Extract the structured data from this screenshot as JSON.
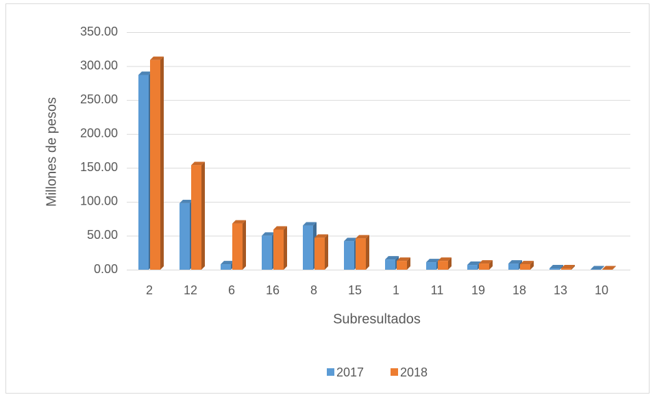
{
  "chart_data": {
    "type": "bar",
    "categories": [
      "2",
      "12",
      "6",
      "16",
      "8",
      "15",
      "1",
      "11",
      "19",
      "18",
      "13",
      "10"
    ],
    "series": [
      {
        "name": "2017",
        "color": "#5b9bd5",
        "values": [
          287,
          98,
          8,
          50,
          65,
          42,
          15,
          11,
          7,
          9,
          2,
          0.5
        ]
      },
      {
        "name": "2018",
        "color": "#ed7d31",
        "values": [
          309,
          154,
          68,
          59,
          47,
          46,
          13,
          13,
          9,
          8,
          2,
          0.5
        ]
      }
    ],
    "ylabel": "Millones de pesos",
    "xlabel": "Subresultados",
    "ylim": [
      0,
      350
    ],
    "yticks": [
      {
        "value": 0,
        "label": "0.00"
      },
      {
        "value": 50,
        "label": "50.00"
      },
      {
        "value": 100,
        "label": "100.00"
      },
      {
        "value": 150,
        "label": "150.00"
      },
      {
        "value": 200,
        "label": "200.00"
      },
      {
        "value": 250,
        "label": "250.00"
      },
      {
        "value": 300,
        "label": "300.00"
      },
      {
        "value": 350,
        "label": "350.00"
      }
    ],
    "grid": true,
    "legend": "bottom"
  }
}
